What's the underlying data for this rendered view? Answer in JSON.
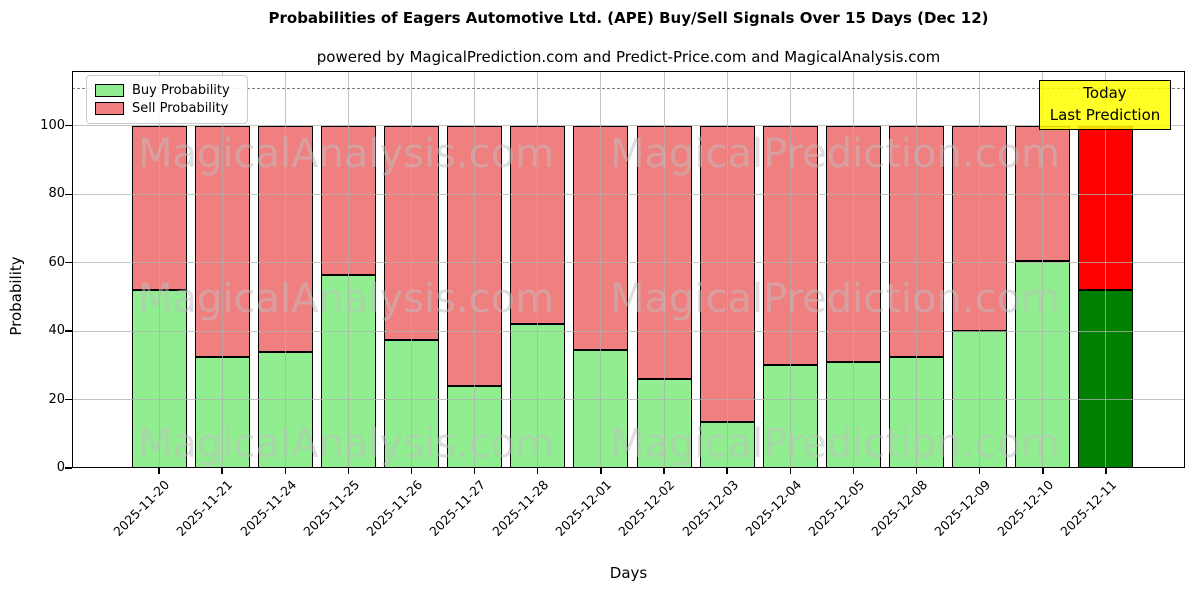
{
  "chart_data": {
    "type": "bar",
    "stacked": true,
    "title": "Probabilities of Eagers Automotive Ltd. (APE) Buy/Sell Signals Over 15 Days (Dec 12)",
    "subtitle": "powered by MagicalPrediction.com and Predict-Price.com and MagicalAnalysis.com",
    "xlabel": "Days",
    "ylabel": "Probability",
    "ylim": [
      0,
      116
    ],
    "yticks": [
      0,
      20,
      40,
      60,
      80,
      100
    ],
    "grid": true,
    "legend_position": "upper left",
    "categories": [
      "2025-11-20",
      "2025-11-21",
      "2025-11-24",
      "2025-11-25",
      "2025-11-26",
      "2025-11-27",
      "2025-11-28",
      "2025-12-01",
      "2025-12-02",
      "2025-12-03",
      "2025-12-04",
      "2025-12-05",
      "2025-12-08",
      "2025-12-09",
      "2025-12-10",
      "2025-12-11"
    ],
    "series": [
      {
        "name": "Buy Probability",
        "color": "#90ee90",
        "values": [
          52,
          32.5,
          34,
          56.5,
          37.5,
          24,
          42,
          34.5,
          26,
          13.5,
          30,
          31,
          32.5,
          40,
          60.5,
          52
        ]
      },
      {
        "name": "Sell Probability",
        "color": "#f08080",
        "values": [
          48,
          67.5,
          66,
          43.5,
          62.5,
          76,
          58,
          65.5,
          74,
          86.5,
          70,
          69,
          67.5,
          60,
          39.5,
          48
        ]
      }
    ],
    "highlight_last_bar": {
      "buy_color": "#008000",
      "sell_color": "#ff0000"
    },
    "dashed_hline": 111,
    "annotation": {
      "line1": "Today",
      "line2": "Last Prediction",
      "bg_color": "#ffff00"
    },
    "watermarks": {
      "left": "MagicalAnalysis.com",
      "right": "MagicalPrediction.com"
    }
  }
}
